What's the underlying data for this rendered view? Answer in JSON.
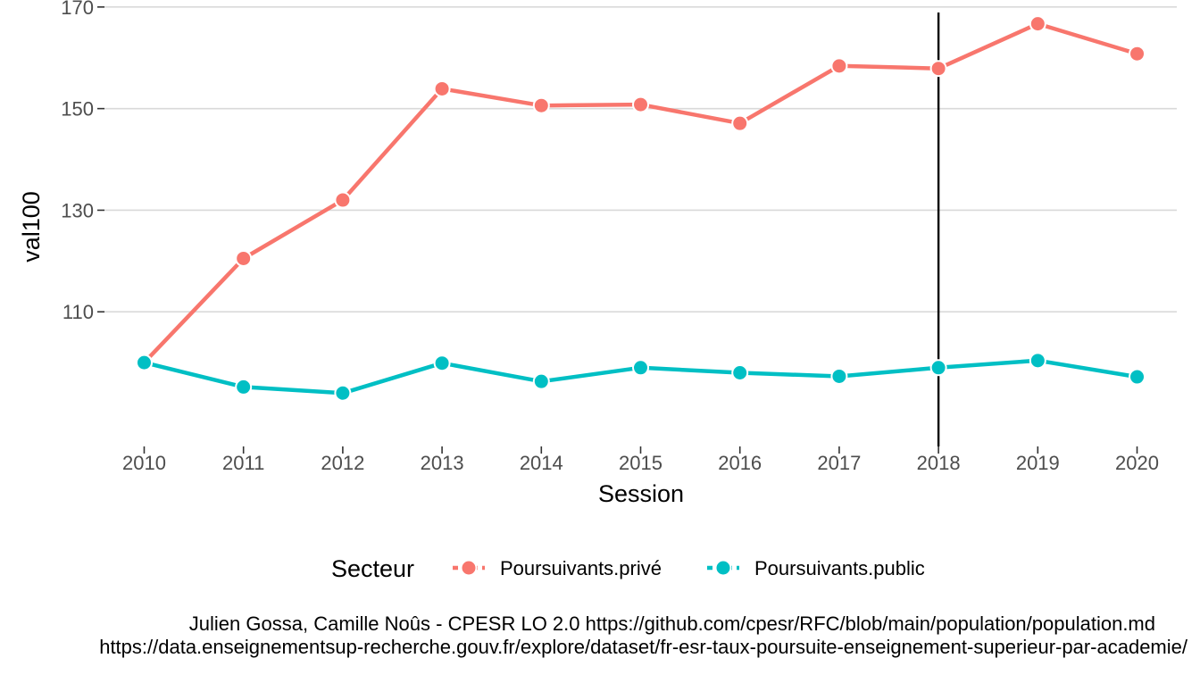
{
  "chart_data": {
    "type": "line",
    "xlabel": "Session",
    "ylabel": "val100",
    "x": [
      2010,
      2011,
      2012,
      2013,
      2014,
      2015,
      2016,
      2017,
      2018,
      2019,
      2020
    ],
    "x_tick_labels": [
      "2010",
      "2011",
      "2012",
      "2013",
      "2014",
      "2015",
      "2016",
      "2017",
      "2018",
      "2019",
      "2020"
    ],
    "y_ticks": [
      110,
      130,
      150,
      170
    ],
    "y_tick_labels": [
      "110",
      "130",
      "150",
      "170"
    ],
    "xlim": [
      2009.6,
      2020.4
    ],
    "ylim": [
      83.5,
      170.5
    ],
    "grid": true,
    "vline_x": 2018,
    "legend": {
      "title": "Secteur",
      "position": "bottom"
    },
    "series": [
      {
        "name": "Poursuivants.privé",
        "color": "#F8766D",
        "values": [
          100,
          120.5,
          132,
          153.9,
          150.6,
          150.8,
          147.1,
          158.4,
          157.9,
          166.7,
          160.8
        ]
      },
      {
        "name": "Poursuivants.public",
        "color": "#00BFC4",
        "values": [
          100,
          95.2,
          94,
          99.9,
          96.3,
          99,
          98,
          97.3,
          99,
          100.4,
          97.2
        ]
      }
    ],
    "caption": [
      "Julien Gossa, Camille Noûs - CPESR LO 2.0 https://github.com/cpesr/RFC/blob/main/population/population.md",
      "https://data.enseignementsup-recherche.gouv.fr/explore/dataset/fr-esr-taux-poursuite-enseignement-superieur-par-academie/"
    ]
  }
}
